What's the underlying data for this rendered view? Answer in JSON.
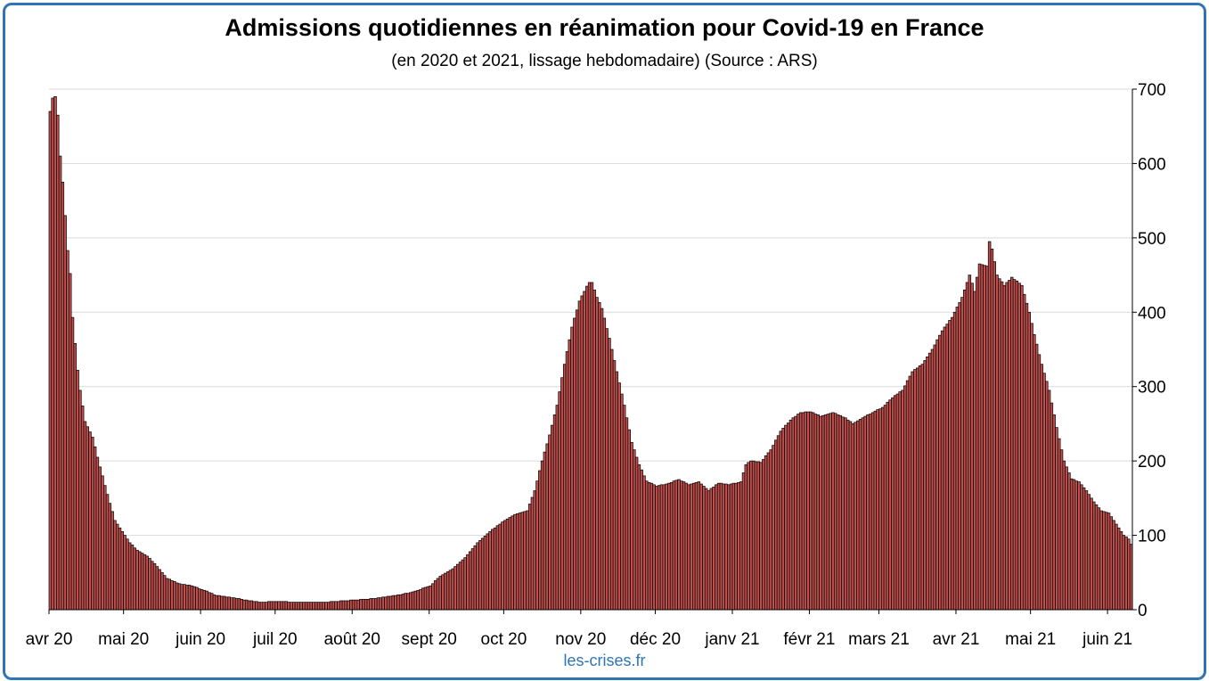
{
  "title": "Admissions quotidiennes en réanimation pour Covid-19 en France",
  "subtitle": "(en 2020 et 2021, lissage hebdomadaire) (Source : ARS)",
  "watermark": "les-crises.fr",
  "colors": {
    "bar_fill": "#C0504D",
    "bar_stroke": "#000000",
    "frame": "#2E75B6",
    "grid": "#D9D9D9"
  },
  "chart_data": {
    "type": "bar",
    "title": "Admissions quotidiennes en réanimation pour Covid-19 en France",
    "subtitle": "(en 2020 et 2021, lissage hebdomadaire) (Source : ARS)",
    "ylim": [
      0,
      700
    ],
    "y_axis_side": "right",
    "y_ticks": [
      0,
      100,
      200,
      300,
      400,
      500,
      600,
      700
    ],
    "x_ticks": [
      "avr 20",
      "mai 20",
      "juin 20",
      "juil 20",
      "août 20",
      "sept 20",
      "oct 20",
      "nov 20",
      "déc 20",
      "janv 21",
      "févr 21",
      "mars 21",
      "avr 21",
      "mai 21",
      "juin 21"
    ],
    "x_start": "2020-04-01",
    "grid": "horizontal",
    "legend": "none",
    "keypoints": [
      [
        "2020-04-01",
        670
      ],
      [
        "2020-04-02",
        688
      ],
      [
        "2020-04-03",
        690
      ],
      [
        "2020-04-04",
        665
      ],
      [
        "2020-04-05",
        610
      ],
      [
        "2020-04-06",
        575
      ],
      [
        "2020-04-07",
        530
      ],
      [
        "2020-04-08",
        483
      ],
      [
        "2020-04-09",
        452
      ],
      [
        "2020-04-10",
        393
      ],
      [
        "2020-04-11",
        358
      ],
      [
        "2020-04-12",
        322
      ],
      [
        "2020-04-13",
        295
      ],
      [
        "2020-04-15",
        253
      ],
      [
        "2020-04-18",
        232
      ],
      [
        "2020-04-21",
        192
      ],
      [
        "2020-04-24",
        155
      ],
      [
        "2020-04-27",
        120
      ],
      [
        "2020-04-30",
        105
      ],
      [
        "2020-05-03",
        90
      ],
      [
        "2020-05-06",
        80
      ],
      [
        "2020-05-10",
        72
      ],
      [
        "2020-05-14",
        58
      ],
      [
        "2020-05-18",
        42
      ],
      [
        "2020-05-23",
        35
      ],
      [
        "2020-05-28",
        32
      ],
      [
        "2020-06-02",
        26
      ],
      [
        "2020-06-07",
        19
      ],
      [
        "2020-06-14",
        16
      ],
      [
        "2020-06-20",
        12
      ],
      [
        "2020-06-25",
        10
      ],
      [
        "2020-07-01",
        11
      ],
      [
        "2020-07-10",
        10
      ],
      [
        "2020-07-20",
        10
      ],
      [
        "2020-07-25",
        11
      ],
      [
        "2020-08-01",
        13
      ],
      [
        "2020-08-10",
        15
      ],
      [
        "2020-08-20",
        20
      ],
      [
        "2020-08-25",
        24
      ],
      [
        "2020-09-01",
        32
      ],
      [
        "2020-09-05",
        45
      ],
      [
        "2020-09-10",
        55
      ],
      [
        "2020-09-15",
        70
      ],
      [
        "2020-09-20",
        90
      ],
      [
        "2020-09-25",
        105
      ],
      [
        "2020-10-01",
        120
      ],
      [
        "2020-10-05",
        128
      ],
      [
        "2020-10-10",
        133
      ],
      [
        "2020-10-13",
        160
      ],
      [
        "2020-10-16",
        200
      ],
      [
        "2020-10-19",
        235
      ],
      [
        "2020-10-22",
        275
      ],
      [
        "2020-10-25",
        330
      ],
      [
        "2020-10-28",
        380
      ],
      [
        "2020-10-31",
        415
      ],
      [
        "2020-11-03",
        435
      ],
      [
        "2020-11-04",
        440
      ],
      [
        "2020-11-05",
        440
      ],
      [
        "2020-11-07",
        420
      ],
      [
        "2020-11-09",
        405
      ],
      [
        "2020-11-12",
        365
      ],
      [
        "2020-11-15",
        320
      ],
      [
        "2020-11-18",
        275
      ],
      [
        "2020-11-21",
        225
      ],
      [
        "2020-11-24",
        195
      ],
      [
        "2020-11-27",
        173
      ],
      [
        "2020-12-01",
        166
      ],
      [
        "2020-12-06",
        170
      ],
      [
        "2020-12-10",
        175
      ],
      [
        "2020-12-14",
        168
      ],
      [
        "2020-12-18",
        172
      ],
      [
        "2020-12-22",
        160
      ],
      [
        "2020-12-26",
        170
      ],
      [
        "2020-12-30",
        168
      ],
      [
        "2021-01-04",
        172
      ],
      [
        "2021-01-06",
        195
      ],
      [
        "2021-01-08",
        200
      ],
      [
        "2021-01-12",
        198
      ],
      [
        "2021-01-16",
        215
      ],
      [
        "2021-01-20",
        240
      ],
      [
        "2021-01-24",
        255
      ],
      [
        "2021-01-28",
        265
      ],
      [
        "2021-02-01",
        266
      ],
      [
        "2021-02-05",
        260
      ],
      [
        "2021-02-10",
        265
      ],
      [
        "2021-02-15",
        258
      ],
      [
        "2021-02-18",
        250
      ],
      [
        "2021-02-22",
        258
      ],
      [
        "2021-02-26",
        265
      ],
      [
        "2021-03-02",
        272
      ],
      [
        "2021-03-06",
        285
      ],
      [
        "2021-03-10",
        295
      ],
      [
        "2021-03-14",
        320
      ],
      [
        "2021-03-18",
        330
      ],
      [
        "2021-03-22",
        350
      ],
      [
        "2021-03-26",
        375
      ],
      [
        "2021-03-30",
        393
      ],
      [
        "2021-04-03",
        420
      ],
      [
        "2021-04-06",
        450
      ],
      [
        "2021-04-08",
        428
      ],
      [
        "2021-04-10",
        465
      ],
      [
        "2021-04-13",
        462
      ],
      [
        "2021-04-14",
        495
      ],
      [
        "2021-04-15",
        485
      ],
      [
        "2021-04-17",
        450
      ],
      [
        "2021-04-20",
        436
      ],
      [
        "2021-04-23",
        447
      ],
      [
        "2021-04-27",
        436
      ],
      [
        "2021-04-30",
        400
      ],
      [
        "2021-05-02",
        370
      ],
      [
        "2021-05-05",
        330
      ],
      [
        "2021-05-08",
        295
      ],
      [
        "2021-05-11",
        245
      ],
      [
        "2021-05-14",
        200
      ],
      [
        "2021-05-17",
        176
      ],
      [
        "2021-05-20",
        172
      ],
      [
        "2021-05-23",
        160
      ],
      [
        "2021-05-26",
        145
      ],
      [
        "2021-05-29",
        133
      ],
      [
        "2021-06-01",
        130
      ],
      [
        "2021-06-04",
        115
      ],
      [
        "2021-06-07",
        100
      ],
      [
        "2021-06-09",
        95
      ],
      [
        "2021-06-10",
        88
      ]
    ]
  }
}
